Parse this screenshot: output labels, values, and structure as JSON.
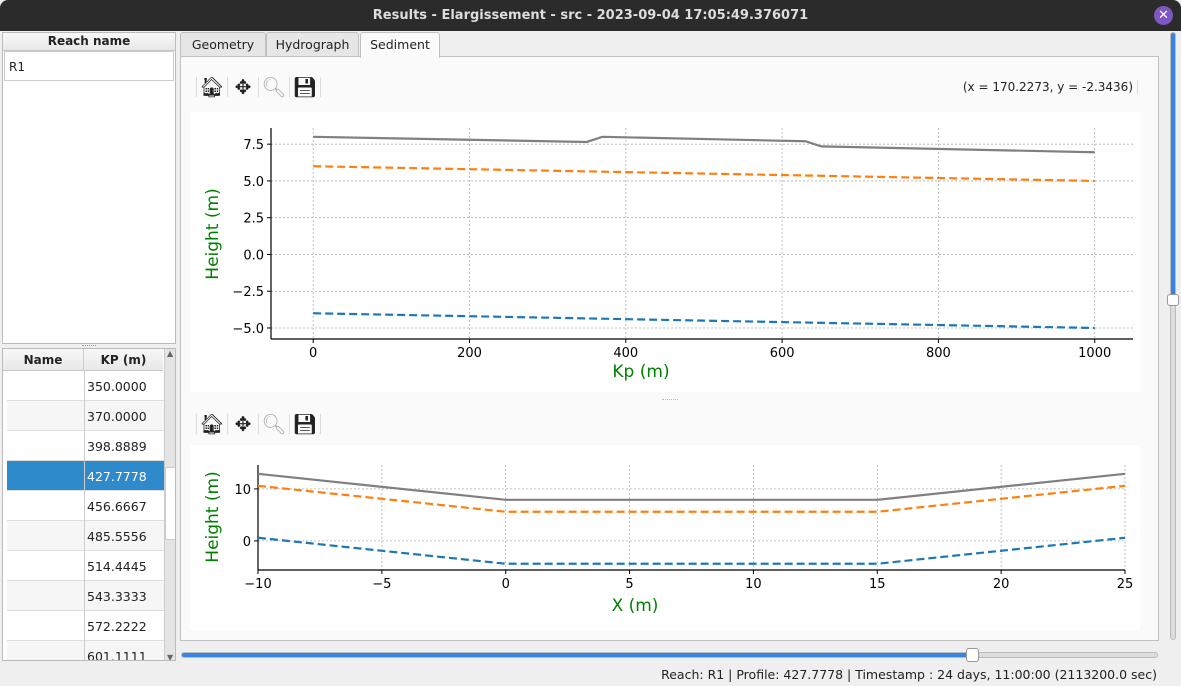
{
  "window": {
    "title": "Results - Elargissement - src - 2023-09-04 17:05:49.376071",
    "close_icon": "close-icon"
  },
  "reach_table": {
    "header": "Reach name",
    "rows": [
      "R1"
    ]
  },
  "profile_table": {
    "headers": [
      "Name",
      "KP (m)"
    ],
    "rows": [
      {
        "name": "",
        "kp": "350.0000"
      },
      {
        "name": "",
        "kp": "370.0000"
      },
      {
        "name": "",
        "kp": "398.8889"
      },
      {
        "name": "",
        "kp": "427.7778",
        "selected": true
      },
      {
        "name": "",
        "kp": "456.6667"
      },
      {
        "name": "",
        "kp": "485.5556"
      },
      {
        "name": "",
        "kp": "514.4445"
      },
      {
        "name": "",
        "kp": "543.3333"
      },
      {
        "name": "",
        "kp": "572.2222"
      },
      {
        "name": "",
        "kp": "601.1111"
      }
    ]
  },
  "tabs": [
    {
      "label": "Geometry"
    },
    {
      "label": "Hydrograph"
    },
    {
      "label": "Sediment",
      "active": true
    }
  ],
  "toolbar": {
    "icons": [
      "home-icon",
      "pan-icon",
      "zoom-icon",
      "save-icon"
    ],
    "coords": "(x = 170.2273,   y = -2.3436)"
  },
  "accent": "#3584e4",
  "selection_color": "#2f8acb",
  "time_slider": {
    "value_fraction": 0.81
  },
  "vertical_slider": {
    "value_fraction": 0.44
  },
  "status": "Reach: R1 | Profile: 427.7778 | Timestamp : 24 days, 11:00:00 (2113200.0 sec)",
  "chart_data": [
    {
      "type": "line",
      "xlabel": "Kp (m)",
      "ylabel": "Height (m)",
      "xlim": [
        -54,
        1049
      ],
      "ylim": [
        -5.75,
        8.6
      ],
      "xticks": [
        0,
        200,
        400,
        600,
        800,
        1000
      ],
      "yticks": [
        -5.0,
        -2.5,
        0.0,
        2.5,
        5.0,
        7.5
      ],
      "ytick_labels": [
        "−5.0",
        "−2.5",
        "0.0",
        "2.5",
        "5.0",
        "7.5"
      ],
      "grid": true,
      "series": [
        {
          "color": "#808080",
          "style": "solid",
          "x": [
            0,
            350,
            370,
            630,
            650,
            1000
          ],
          "y": [
            8.0,
            7.65,
            8.0,
            7.7,
            7.35,
            6.95
          ]
        },
        {
          "color": "#ff7f0e",
          "style": "dashed",
          "x": [
            0,
            1000
          ],
          "y": [
            6.0,
            5.0
          ]
        },
        {
          "color": "#1f77b4",
          "style": "dashed",
          "x": [
            0,
            1000
          ],
          "y": [
            -4.0,
            -5.0
          ]
        }
      ]
    },
    {
      "type": "line",
      "xlabel": "X (m)",
      "ylabel": "Height (m)",
      "xlim": [
        -10,
        25
      ],
      "ylim": [
        -5.6,
        14.6
      ],
      "xticks": [
        -10,
        -5,
        0,
        5,
        10,
        15,
        20,
        25
      ],
      "xtick_labels": [
        "−10",
        "−5",
        "0",
        "5",
        "10",
        "15",
        "20",
        "25"
      ],
      "yticks": [
        0,
        10
      ],
      "ytick_labels": [
        "0",
        "10"
      ],
      "grid": true,
      "series": [
        {
          "color": "#808080",
          "style": "solid",
          "x": [
            -10,
            0,
            15,
            25
          ],
          "y": [
            12.9,
            7.9,
            7.9,
            12.9
          ]
        },
        {
          "color": "#ff7f0e",
          "style": "dashed",
          "x": [
            -10,
            0,
            15,
            25
          ],
          "y": [
            10.6,
            5.6,
            5.6,
            10.6
          ]
        },
        {
          "color": "#1f77b4",
          "style": "dashed",
          "x": [
            -10,
            0,
            15,
            25
          ],
          "y": [
            0.6,
            -4.4,
            -4.4,
            0.6
          ]
        }
      ]
    }
  ]
}
